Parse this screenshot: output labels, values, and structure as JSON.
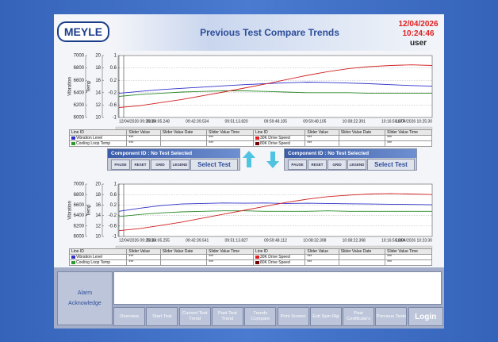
{
  "header": {
    "logo": "MEYLE",
    "title": "Previous Test Compare Trends",
    "date": "12/04/2026",
    "time": "10:24:46",
    "user": "user"
  },
  "chart_data": [
    {
      "type": "line",
      "ylabel": "Vibration",
      "y2label": "Temp",
      "ylim": [
        6000,
        7000
      ],
      "yticks": [
        7000,
        6800,
        6600,
        6400,
        6200,
        6000
      ],
      "y2lim": [
        10,
        20
      ],
      "y2ticks": [
        20,
        18,
        16,
        14,
        12,
        10
      ],
      "y3lim": [
        -1,
        1
      ],
      "y3ticks": [
        1,
        0.6,
        0.2,
        -0.2,
        -0.6,
        -1
      ],
      "grid": true,
      "x_labels": [
        "12/04/2026 09:26:39",
        "09:34:05.248",
        "09:42:39.534",
        "09:51:13.820",
        "09:59:48.105",
        "09:59:48.105",
        "10:08:22.391",
        "10:16:56.677",
        "12/04/2026 10:25:30"
      ],
      "series": [
        {
          "name": "Vibration Level",
          "color": "#3030c8",
          "axis": "y",
          "values": [
            6390,
            6420,
            6450,
            6470,
            6490,
            6510,
            6530,
            6545,
            6560,
            6570,
            6565,
            6555,
            6545,
            6530,
            6515,
            6505
          ]
        },
        {
          "name": "Cooling Loop Temp",
          "color": "#2a8a2a",
          "axis": "y2",
          "values": [
            13.4,
            13.7,
            13.9,
            14.1,
            14.2,
            14.3,
            14.3,
            14.2,
            14.1,
            14.0,
            14.0,
            14.0,
            13.9,
            13.9,
            13.9,
            13.9
          ]
        },
        {
          "name": "30K Drive Speed",
          "color": "#d02020",
          "axis": "y3",
          "values": [
            -0.68,
            -0.62,
            -0.52,
            -0.42,
            -0.3,
            -0.18,
            -0.05,
            0.08,
            0.22,
            0.36,
            0.48,
            0.58,
            0.64,
            0.68,
            0.7,
            0.68
          ]
        }
      ]
    },
    {
      "type": "line",
      "ylabel": "Vibration",
      "y2label": "Temp",
      "ylim": [
        6000,
        7000
      ],
      "yticks": [
        7000,
        6800,
        6600,
        6400,
        6200,
        6000
      ],
      "y2lim": [
        10,
        20
      ],
      "y2ticks": [
        20,
        18,
        16,
        14,
        12,
        10
      ],
      "y3lim": [
        -1,
        1
      ],
      "y3ticks": [
        1,
        0.6,
        0.2,
        -0.2,
        -0.6,
        -1
      ],
      "grid": true,
      "x_labels": [
        "12/04/2026 09:25:30",
        "09:34:05.255",
        "09:42:39.541",
        "09:51:13.827",
        "09:59:48.112",
        "10:08:32.398",
        "10:08:22.398",
        "10:16:56.684",
        "12/04/2026 10:23:30"
      ],
      "series": [
        {
          "name": "Vibration Level",
          "color": "#3030c8",
          "axis": "y",
          "values": [
            6480,
            6540,
            6590,
            6620,
            6630,
            6640,
            6635,
            6640,
            6630,
            6635,
            6630,
            6625,
            6620,
            6615,
            6610,
            6605
          ]
        },
        {
          "name": "Cooling Loop Temp",
          "color": "#2a8a2a",
          "axis": "y2",
          "values": [
            13.8,
            14.2,
            14.5,
            14.7,
            14.8,
            14.9,
            14.9,
            14.8,
            14.8,
            14.8,
            14.9,
            14.8,
            14.8,
            14.8,
            14.8,
            14.8
          ]
        },
        {
          "name": "30K Drive Speed",
          "color": "#d02020",
          "axis": "y3",
          "values": [
            -0.78,
            -0.7,
            -0.58,
            -0.45,
            -0.3,
            -0.15,
            0.0,
            0.15,
            0.3,
            0.42,
            0.52,
            0.58,
            0.62,
            0.64,
            0.62,
            0.6
          ]
        }
      ]
    }
  ],
  "legend_tables": [
    {
      "header": [
        "Line ID",
        "Slider Value",
        "Slider Value Date",
        "Slider Value Time",
        "Line ID",
        "Slider Value",
        "Slider Value Date",
        "Slider Value Time"
      ],
      "rows": [
        [
          "Vibration Level",
          "***",
          null,
          "***",
          "30K Drive Speed",
          "***",
          null,
          "***"
        ],
        [
          "Cooling Loop Temp",
          "***",
          null,
          "***",
          "80K Drive Speed",
          "***",
          null,
          "***"
        ]
      ],
      "swatches": [
        [
          "#3030c8",
          "#e02020"
        ],
        [
          "#2a9a2a",
          "#700000"
        ]
      ]
    },
    {
      "header": [
        "Line ID",
        "Slider Value",
        "Slider Value Date",
        "Slider Value Time",
        "Line ID",
        "Slider Value",
        "Slider Value Date",
        "Slider Value Time"
      ],
      "rows": [
        [
          "Vibration Level",
          "***",
          null,
          "***",
          "30K Drive Speed",
          "***",
          null,
          "***"
        ],
        [
          "Cooling Loop Temp",
          "***",
          null,
          "***",
          "80K Drive Speed",
          "***",
          null,
          "***"
        ]
      ],
      "swatches": [
        [
          "#3030c8",
          "#e02020"
        ],
        [
          "#2a9a2a",
          "#700000"
        ]
      ]
    }
  ],
  "panels": [
    {
      "title": "Component ID : No Test Selected",
      "buttons": [
        "PAUSE",
        "RESET",
        "GRID",
        "LEGEND"
      ],
      "select": "Select Test"
    },
    {
      "title": "Component ID : No Test Selected",
      "buttons": [
        "PAUSE",
        "RESET",
        "GRID",
        "LEGEND"
      ],
      "select": "Select Test"
    }
  ],
  "alarm": "Alarm Acknowledge",
  "nav": [
    "Overview",
    "Start Test",
    "Current Test Trend",
    "Past Test Trend",
    "Trends Compare",
    "Print Screen",
    "Exit Spin Rig",
    "Past Certificate's",
    "Previous Tests",
    "Login"
  ]
}
